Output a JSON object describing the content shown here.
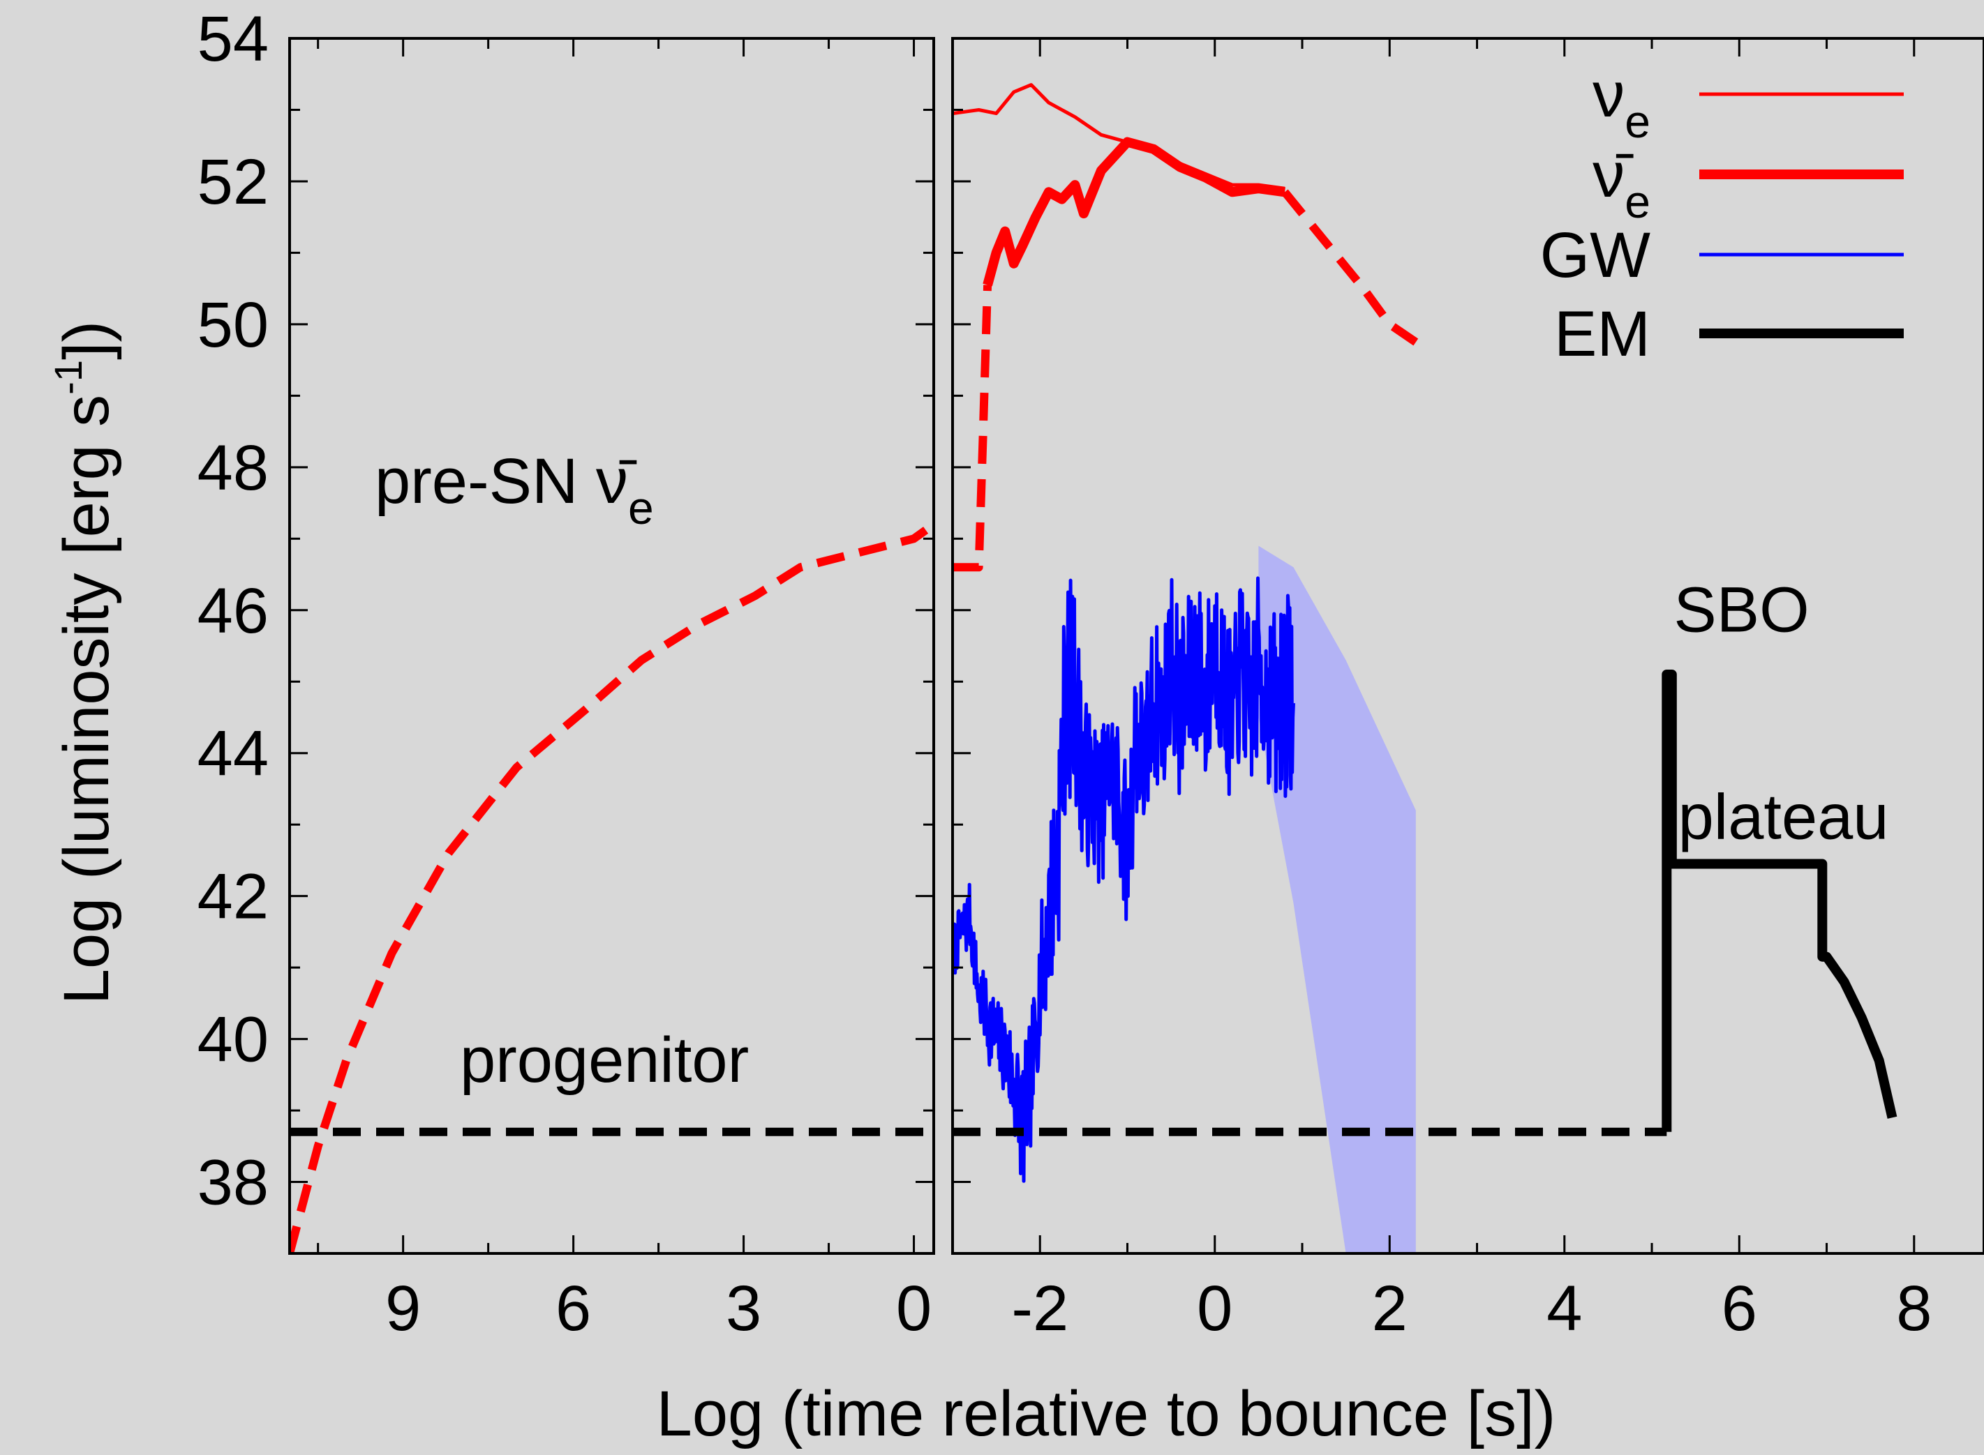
{
  "chart_data": {
    "type": "line",
    "ylabel": "Log (luminosity [erg s-1])",
    "ylabel_parts": {
      "main": "Log (luminosity [erg s",
      "sup": "-1",
      "tail": "])"
    },
    "xlabel": "Log (time relative  to bounce [s])",
    "ylim": [
      37,
      54
    ],
    "y_ticks": [
      "38",
      "40",
      "42",
      "44",
      "46",
      "48",
      "50",
      "52",
      "54"
    ],
    "y_tick_values": [
      38,
      40,
      42,
      44,
      46,
      48,
      50,
      52,
      54
    ],
    "grid": false,
    "legend_position": "top-right",
    "colors": {
      "background": "#d8d8d8",
      "nu_e": "#ff0000",
      "nubar_e": "#ff0000",
      "gw": "#0000ff",
      "gw_band": "#b3b3f5",
      "em": "#000000"
    },
    "panels": [
      {
        "name": "pre-bounce",
        "x_meaning": "log10 of time before bounce (axis reversed)",
        "xlim": [
          11,
          -0.35
        ],
        "x_ticks": [
          "9",
          "6",
          "3",
          "0"
        ],
        "x_tick_values": [
          9,
          6,
          3,
          0
        ],
        "series": [
          {
            "key": "presn_nubar_e",
            "style": "dashed-thick",
            "color": "#ff0000",
            "x": [
              11.0,
              10.5,
              10.0,
              9.2,
              8.2,
              7.0,
              5.8,
              4.8,
              3.8,
              2.8,
              2.0,
              1.0,
              0.0,
              -0.35
            ],
            "y": [
              37.0,
              38.5,
              39.7,
              41.2,
              42.6,
              43.8,
              44.6,
              45.3,
              45.8,
              46.2,
              46.6,
              46.8,
              47.0,
              47.2
            ]
          },
          {
            "key": "progenitor_em",
            "style": "dashed-thick",
            "color": "#000000",
            "x": [
              11.0,
              -0.35
            ],
            "y": [
              38.7,
              38.7
            ]
          }
        ],
        "annotations": [
          {
            "text": "pre-SN ",
            "symbol": "ν̄",
            "sub": "e",
            "x": 9.5,
            "y": 47.5
          },
          {
            "text": "progenitor",
            "x": 8.0,
            "y": 39.4
          }
        ]
      },
      {
        "name": "post-bounce",
        "x_meaning": "log10 of time after bounce",
        "xlim": [
          -3.0,
          8.8
        ],
        "x_ticks": [
          "-2",
          "0",
          "2",
          "4",
          "6",
          "8"
        ],
        "x_tick_values": [
          -2,
          0,
          2,
          4,
          6,
          8
        ],
        "series": [
          {
            "key": "nu_e",
            "style": "solid-thin",
            "color": "#ff0000",
            "x": [
              -3.0,
              -2.7,
              -2.5,
              -2.3,
              -2.1,
              -1.9,
              -1.6,
              -1.3,
              -1.0,
              -0.7,
              -0.4,
              -0.1,
              0.2,
              0.5,
              0.8
            ],
            "y": [
              52.95,
              53.0,
              52.95,
              53.25,
              53.35,
              53.1,
              52.9,
              52.65,
              52.55,
              52.45,
              52.25,
              52.1,
              51.95,
              51.95,
              51.9
            ]
          },
          {
            "key": "nubar_e",
            "style": "solid-thick",
            "color": "#ff0000",
            "x": [
              -2.6,
              -2.5,
              -2.4,
              -2.3,
              -2.2,
              -2.05,
              -1.9,
              -1.75,
              -1.6,
              -1.5,
              -1.3,
              -1.0,
              -0.7,
              -0.4,
              -0.1,
              0.2,
              0.5,
              0.8
            ],
            "y": [
              50.55,
              51.0,
              51.3,
              50.85,
              51.1,
              51.5,
              51.85,
              51.75,
              51.95,
              51.55,
              52.15,
              52.55,
              52.45,
              52.2,
              52.05,
              51.85,
              51.9,
              51.85
            ]
          },
          {
            "key": "nubar_e_tail",
            "style": "dashed-thick",
            "color": "#ff0000",
            "x": [
              0.8,
              1.1,
              1.4,
              1.7,
              2.0,
              2.3
            ],
            "y": [
              51.85,
              51.4,
              50.95,
              50.5,
              50.0,
              49.75
            ]
          },
          {
            "key": "nubar_e_rise",
            "style": "dashed-thick",
            "color": "#ff0000",
            "x": [
              -3.0,
              -2.7,
              -2.65,
              -2.6
            ],
            "y": [
              46.6,
              46.6,
              48.5,
              50.55
            ]
          },
          {
            "key": "gw",
            "style": "noisy",
            "color": "#0000ff",
            "noise_seed": 7,
            "x": [
              -3.0,
              -2.9,
              -2.8,
              -2.7,
              -2.6,
              -2.5,
              -2.4,
              -2.3,
              -2.2,
              -2.1,
              -2.0,
              -1.9,
              -1.8,
              -1.7,
              -1.6,
              -1.5,
              -1.4,
              -1.3,
              -1.2,
              -1.1,
              -1.0,
              -0.9,
              -0.8,
              -0.7,
              -0.6,
              -0.5,
              -0.4,
              -0.3,
              -0.2,
              -0.1,
              0.0,
              0.1,
              0.2,
              0.3,
              0.4,
              0.5,
              0.6,
              0.7,
              0.8,
              0.9
            ],
            "y": [
              41.2,
              41.5,
              41.7,
              40.6,
              40.3,
              40.0,
              39.8,
              39.4,
              38.8,
              39.4,
              40.8,
              41.7,
              42.6,
              45.0,
              44.8,
              43.6,
              43.5,
              43.2,
              43.8,
              43.4,
              42.6,
              44.3,
              43.8,
              44.8,
              44.5,
              45.4,
              44.6,
              44.9,
              45.3,
              44.7,
              45.6,
              44.9,
              44.4,
              45.3,
              44.6,
              45.2,
              44.8,
              44.6,
              44.9,
              44.7
            ],
            "amp": [
              0.4,
              0.4,
              0.5,
              0.4,
              0.6,
              0.6,
              0.6,
              0.8,
              1.0,
              0.9,
              0.9,
              1.2,
              1.6,
              1.6,
              1.5,
              1.2,
              1.1,
              1.1,
              1.0,
              1.2,
              1.1,
              1.3,
              1.1,
              1.2,
              1.1,
              1.2,
              1.3,
              1.3,
              1.3,
              1.3,
              1.3,
              1.2,
              1.2,
              1.3,
              1.3,
              1.3,
              1.2,
              1.4,
              1.5,
              1.4
            ]
          },
          {
            "key": "gw_band",
            "style": "band",
            "color": "#b3b3f5",
            "x": [
              0.5,
              0.9,
              1.5,
              2.3
            ],
            "y_upper": [
              46.9,
              46.6,
              45.3,
              43.2
            ],
            "y_lower": [
              44.5,
              41.9,
              37.0,
              37.0
            ]
          },
          {
            "key": "em",
            "style": "solid-thick",
            "color": "#000000",
            "x": [
              5.17,
              5.17,
              5.23,
              5.23,
              6.95,
              6.95,
              7.0,
              7.2,
              7.4,
              7.6,
              7.75
            ],
            "y": [
              38.7,
              45.1,
              45.1,
              42.45,
              42.45,
              41.15,
              41.15,
              40.8,
              40.3,
              39.7,
              38.9
            ]
          },
          {
            "key": "em_dashed",
            "style": "dashed-thick",
            "color": "#000000",
            "x": [
              -3.0,
              5.17
            ],
            "y": [
              38.7,
              38.7
            ]
          }
        ],
        "annotations": [
          {
            "text": "SBO",
            "x": 5.25,
            "y": 45.7
          },
          {
            "text": "plateau",
            "x": 5.3,
            "y": 42.8
          }
        ],
        "legend": [
          {
            "symbol": "ν",
            "sub": "e",
            "style": "solid-thin",
            "color": "#ff0000"
          },
          {
            "symbol": "ν̄",
            "sub": "e",
            "style": "solid-thick",
            "color": "#ff0000"
          },
          {
            "label": "GW",
            "style": "solid-thin",
            "color": "#0000ff"
          },
          {
            "label": "EM",
            "style": "solid-thick",
            "color": "#000000"
          }
        ]
      }
    ]
  }
}
